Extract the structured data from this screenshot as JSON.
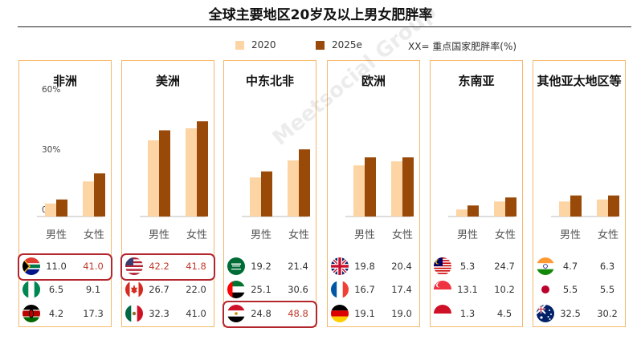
{
  "title": "全球主要地区20岁及以上男女肥胖率",
  "legend": {
    "series_2020": "2020",
    "series_2025": "2025e",
    "note": "XX= 重点国家肥胖率(%)",
    "color_2020": "#fdd4a4",
    "color_2025": "#9a4a08"
  },
  "watermark": "Meetsocial Group 飞书深诺",
  "chart_data": {
    "type": "bar",
    "ylim": [
      0,
      60
    ],
    "yticks": [
      "0%",
      "30%",
      "60%"
    ],
    "categories": [
      "男性",
      "女性"
    ],
    "series_names": [
      "2020",
      "2025e"
    ],
    "panels": [
      {
        "region": "非洲",
        "values_2020": [
          6.5,
          17.5
        ],
        "values_2025": [
          8.5,
          21.5
        ],
        "countries": [
          {
            "flag": "south-africa",
            "male": "11.0",
            "female": "41.0",
            "highlight": true
          },
          {
            "flag": "nigeria",
            "male": "6.5",
            "female": "9.1",
            "highlight": false
          },
          {
            "flag": "kenya",
            "male": "4.2",
            "female": "17.3",
            "highlight": false
          }
        ]
      },
      {
        "region": "美洲",
        "values_2020": [
          38,
          44
        ],
        "values_2025": [
          43,
          47.5
        ],
        "countries": [
          {
            "flag": "usa",
            "male": "42.2",
            "female": "41.8",
            "highlight": true
          },
          {
            "flag": "canada",
            "male": "26.7",
            "female": "22.0",
            "highlight": false
          },
          {
            "flag": "mexico",
            "male": "32.3",
            "female": "41.0",
            "highlight": false
          }
        ]
      },
      {
        "region": "中东北非",
        "values_2020": [
          19.5,
          28
        ],
        "values_2025": [
          22.5,
          33.5
        ],
        "countries": [
          {
            "flag": "saudi-arabia",
            "male": "19.2",
            "female": "21.4",
            "highlight": false
          },
          {
            "flag": "uae",
            "male": "25.1",
            "female": "30.6",
            "highlight": false
          },
          {
            "flag": "egypt",
            "male": "24.8",
            "female": "48.8",
            "highlight": true
          }
        ]
      },
      {
        "region": "欧洲",
        "values_2020": [
          25.5,
          27.5
        ],
        "values_2025": [
          29.5,
          29.5
        ],
        "countries": [
          {
            "flag": "uk",
            "male": "19.8",
            "female": "20.4",
            "highlight": false
          },
          {
            "flag": "france",
            "male": "16.7",
            "female": "17.4",
            "highlight": false
          },
          {
            "flag": "germany",
            "male": "19.1",
            "female": "19.0",
            "highlight": false
          }
        ]
      },
      {
        "region": "东南亚",
        "values_2020": [
          3.5,
          7.5
        ],
        "values_2025": [
          5.5,
          9.5
        ],
        "countries": [
          {
            "flag": "malaysia",
            "male": "5.3",
            "female": "24.7",
            "highlight": false
          },
          {
            "flag": "singapore",
            "male": "13.1",
            "female": "10.2",
            "highlight": false
          },
          {
            "flag": "indonesia",
            "male": "1.3",
            "female": "4.5",
            "highlight": false
          }
        ]
      },
      {
        "region": "其他亚太地区等",
        "values_2020": [
          7.5,
          8.5
        ],
        "values_2025": [
          10.5,
          10.5
        ],
        "countries": [
          {
            "flag": "india",
            "male": "4.7",
            "female": "6.3",
            "highlight": false
          },
          {
            "flag": "japan",
            "male": "5.5",
            "female": "5.5",
            "highlight": false
          },
          {
            "flag": "australia",
            "male": "32.5",
            "female": "30.2",
            "highlight": false
          }
        ]
      }
    ]
  }
}
